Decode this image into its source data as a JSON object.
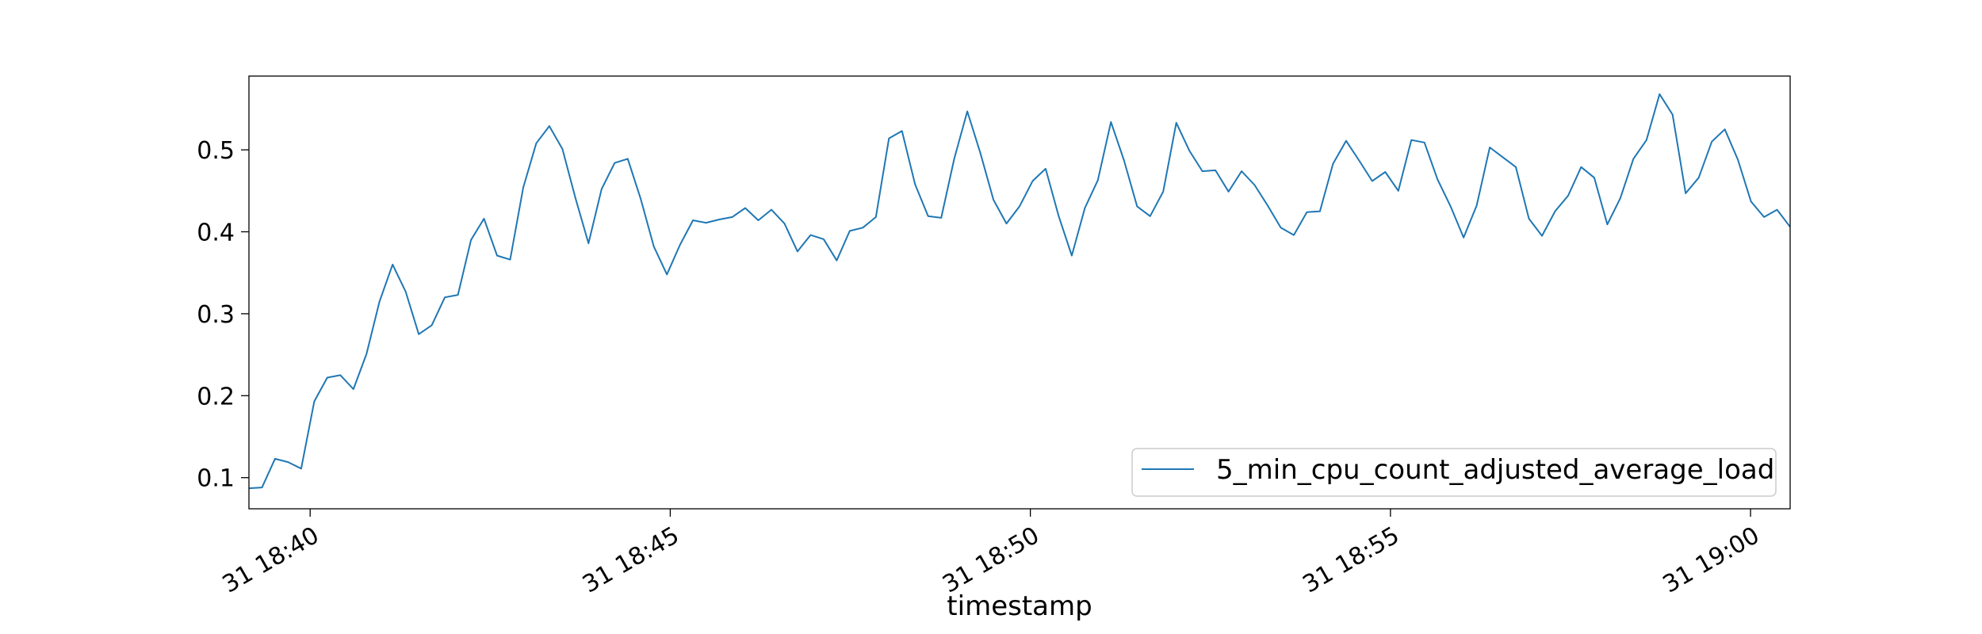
{
  "chart_data": {
    "type": "line",
    "title": "",
    "xlabel": "timestamp",
    "ylabel": "",
    "grid": false,
    "legend_position": "lower right",
    "colors": {
      "line": "#1f77b4",
      "axes": "#000000",
      "legend_border": "#cccccc"
    },
    "x_start": "31 18:39:09",
    "x_end": "31 19:00:33",
    "xlim": [
      "31 18:39:09",
      "31 19:00:33"
    ],
    "ylim": [
      0.062,
      0.59
    ],
    "x_ticks": [
      {
        "value": "31 18:40:00",
        "label": "31 18:40"
      },
      {
        "value": "31 18:45:00",
        "label": "31 18:45"
      },
      {
        "value": "31 18:50:00",
        "label": "31 18:50"
      },
      {
        "value": "31 18:55:00",
        "label": "31 18:55"
      },
      {
        "value": "31 19:00:00",
        "label": "31 19:00"
      }
    ],
    "y_ticks": [
      {
        "value": 0.1,
        "label": "0.1"
      },
      {
        "value": 0.2,
        "label": "0.2"
      },
      {
        "value": 0.3,
        "label": "0.3"
      },
      {
        "value": 0.4,
        "label": "0.4"
      },
      {
        "value": 0.5,
        "label": "0.5"
      }
    ],
    "series": [
      {
        "name": "5_min_cpu_count_adjusted_average_load",
        "values": [
          0.087,
          0.088,
          0.123,
          0.119,
          0.111,
          0.193,
          0.222,
          0.225,
          0.208,
          0.251,
          0.315,
          0.36,
          0.327,
          0.275,
          0.286,
          0.32,
          0.323,
          0.39,
          0.416,
          0.371,
          0.366,
          0.454,
          0.508,
          0.529,
          0.501,
          0.441,
          0.386,
          0.452,
          0.484,
          0.489,
          0.44,
          0.382,
          0.348,
          0.384,
          0.414,
          0.411,
          0.415,
          0.418,
          0.429,
          0.414,
          0.427,
          0.41,
          0.376,
          0.396,
          0.391,
          0.365,
          0.401,
          0.405,
          0.418,
          0.514,
          0.523,
          0.458,
          0.419,
          0.417,
          0.489,
          0.547,
          0.496,
          0.439,
          0.41,
          0.431,
          0.462,
          0.477,
          0.419,
          0.371,
          0.429,
          0.463,
          0.534,
          0.487,
          0.431,
          0.419,
          0.449,
          0.533,
          0.499,
          0.474,
          0.475,
          0.449,
          0.474,
          0.457,
          0.432,
          0.405,
          0.396,
          0.424,
          0.425,
          0.483,
          0.511,
          0.487,
          0.462,
          0.473,
          0.45,
          0.512,
          0.509,
          0.464,
          0.431,
          0.393,
          0.432,
          0.503,
          0.491,
          0.479,
          0.416,
          0.395,
          0.425,
          0.444,
          0.479,
          0.466,
          0.409,
          0.441,
          0.489,
          0.512,
          0.568,
          0.543,
          0.447,
          0.466,
          0.51,
          0.525,
          0.488,
          0.437,
          0.418,
          0.427,
          0.406
        ]
      }
    ]
  }
}
